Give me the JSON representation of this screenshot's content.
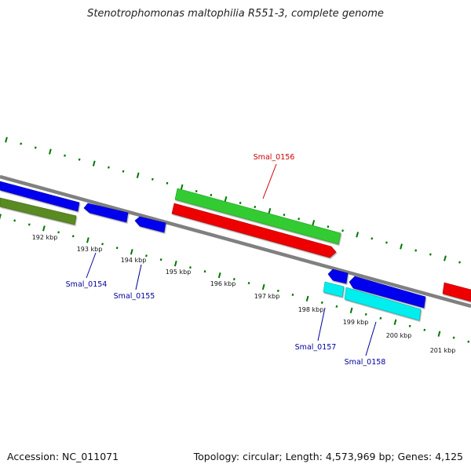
{
  "title": "Stenotrophomonas maltophilia R551-3, complete genome",
  "footer": {
    "accession": "Accession: NC_011071",
    "summary": "Topology: circular; Length: 4,573,969 bp; Genes: 4,125"
  },
  "ruler": {
    "labels": [
      "192 kbp",
      "193 kbp",
      "194 kbp",
      "195 kbp",
      "196 kbp",
      "197 kbp",
      "198 kbp",
      "199 kbp",
      "200 kbp",
      "201 kbp"
    ]
  },
  "gene_labels": [
    {
      "text": "Smal_0156",
      "color": "#cc0000"
    },
    {
      "text": "Smal_0154",
      "color": "#000099"
    },
    {
      "text": "Smal_0155",
      "color": "#000099"
    },
    {
      "text": "Smal_0157",
      "color": "#000099"
    },
    {
      "text": "Smal_0158",
      "color": "#000099"
    }
  ],
  "colors": {
    "cds_forward": "#33cc33",
    "cds_reverse": "#ee0000",
    "gene_blue": "#0000ee",
    "gene_cyan": "#00eeee",
    "olive": "#5a8a20",
    "backbone": "#808080",
    "ticks": "#007700"
  }
}
